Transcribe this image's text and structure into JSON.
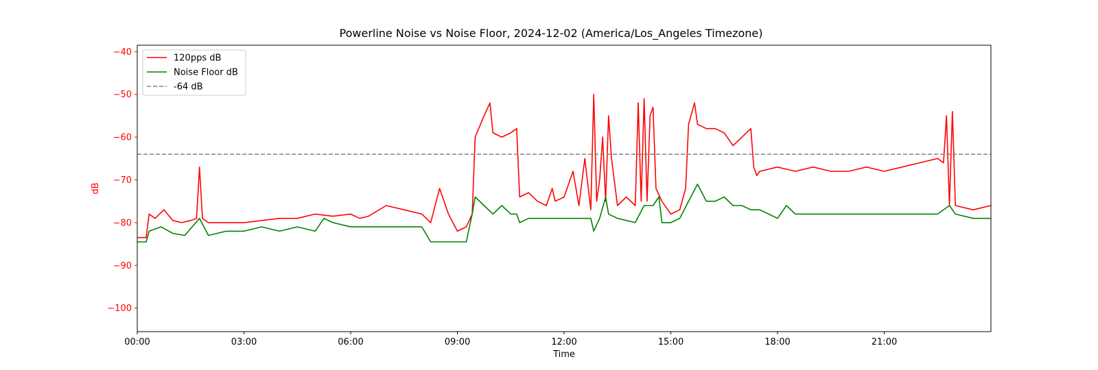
{
  "chart_data": {
    "type": "line",
    "title": "Powerline Noise vs Noise Floor, 2024-12-02 (America/Los_Angeles Timezone)",
    "xlabel": "Time",
    "ylabel": "dB",
    "xlim": [
      "00:00",
      "24:00"
    ],
    "ylim": [
      -105.5,
      -38.5
    ],
    "x_ticks": [
      "00:00",
      "03:00",
      "06:00",
      "09:00",
      "12:00",
      "15:00",
      "18:00",
      "21:00"
    ],
    "y_ticks": [
      -40,
      -50,
      -60,
      -70,
      -80,
      -90,
      -100
    ],
    "grid": false,
    "legend_position": "upper-left",
    "series": [
      {
        "name": "120pps dB",
        "color": "#ff0000",
        "style": "solid",
        "x": [
          "00:00",
          "00:15",
          "00:20",
          "00:30",
          "00:45",
          "01:00",
          "01:15",
          "01:30",
          "01:40",
          "01:45",
          "01:50",
          "02:00",
          "02:30",
          "03:00",
          "03:30",
          "04:00",
          "04:30",
          "05:00",
          "05:30",
          "06:00",
          "06:15",
          "06:30",
          "07:00",
          "07:30",
          "08:00",
          "08:15",
          "08:30",
          "08:45",
          "09:00",
          "09:15",
          "09:25",
          "09:30",
          "09:45",
          "09:55",
          "10:00",
          "10:15",
          "10:30",
          "10:40",
          "10:45",
          "11:00",
          "11:15",
          "11:30",
          "11:40",
          "11:45",
          "12:00",
          "12:15",
          "12:25",
          "12:35",
          "12:45",
          "12:50",
          "12:55",
          "13:00",
          "13:05",
          "13:10",
          "13:15",
          "13:20",
          "13:30",
          "13:45",
          "14:00",
          "14:05",
          "14:10",
          "14:15",
          "14:20",
          "14:25",
          "14:30",
          "14:35",
          "14:45",
          "15:00",
          "15:15",
          "15:25",
          "15:30",
          "15:40",
          "15:45",
          "16:00",
          "16:15",
          "16:30",
          "16:45",
          "17:00",
          "17:15",
          "17:20",
          "17:25",
          "17:30",
          "18:00",
          "18:30",
          "19:00",
          "19:30",
          "20:00",
          "20:30",
          "21:00",
          "21:30",
          "22:00",
          "22:30",
          "22:40",
          "22:45",
          "22:50",
          "22:55",
          "23:00",
          "23:30",
          "24:00"
        ],
        "y": [
          -83.5,
          -83.5,
          -78,
          -79,
          -77,
          -79.5,
          -80,
          -79.5,
          -79,
          -67,
          -79,
          -80,
          -80,
          -80,
          -79.5,
          -79,
          -79,
          -78,
          -78.5,
          -78,
          -79,
          -78.5,
          -76,
          -77,
          -78,
          -80,
          -72,
          -78,
          -82,
          -81,
          -78,
          -60,
          -55,
          -52,
          -59,
          -60,
          -59,
          -58,
          -74,
          -73,
          -75,
          -76,
          -72,
          -75,
          -74,
          -68,
          -76,
          -65,
          -77,
          -50,
          -75,
          -70,
          -60,
          -75,
          -55,
          -65,
          -76,
          -74,
          -76,
          -52,
          -75,
          -51,
          -75,
          -55,
          -53,
          -72,
          -75,
          -78,
          -77,
          -72,
          -57,
          -52,
          -57,
          -58,
          -58,
          -59,
          -62,
          -60,
          -58,
          -67,
          -69,
          -68,
          -67,
          -68,
          -67,
          -68,
          -68,
          -67,
          -68,
          -67,
          -66,
          -65,
          -66,
          -55,
          -76,
          -54,
          -76,
          -77,
          -76
        ]
      },
      {
        "name": "Noise Floor dB",
        "color": "#008000",
        "style": "solid",
        "x": [
          "00:00",
          "00:15",
          "00:20",
          "00:40",
          "01:00",
          "01:20",
          "01:45",
          "02:00",
          "02:30",
          "03:00",
          "03:30",
          "04:00",
          "04:30",
          "05:00",
          "05:15",
          "05:30",
          "06:00",
          "06:30",
          "07:00",
          "07:30",
          "08:00",
          "08:15",
          "08:30",
          "09:00",
          "09:15",
          "09:25",
          "09:30",
          "09:45",
          "10:00",
          "10:15",
          "10:30",
          "10:40",
          "10:45",
          "11:00",
          "11:30",
          "12:00",
          "12:30",
          "12:45",
          "12:50",
          "13:00",
          "13:10",
          "13:15",
          "13:30",
          "14:00",
          "14:15",
          "14:30",
          "14:40",
          "14:45",
          "15:00",
          "15:15",
          "15:30",
          "15:45",
          "16:00",
          "16:15",
          "16:30",
          "16:45",
          "17:00",
          "17:15",
          "17:30",
          "17:45",
          "18:00",
          "18:15",
          "18:30",
          "19:00",
          "19:30",
          "20:00",
          "20:30",
          "21:00",
          "21:30",
          "22:00",
          "22:30",
          "22:50",
          "23:00",
          "23:30",
          "24:00"
        ],
        "y": [
          -84.5,
          -84.5,
          -82,
          -81,
          -82.5,
          -83,
          -79,
          -83,
          -82,
          -82,
          -81,
          -82,
          -81,
          -82,
          -79,
          -80,
          -81,
          -81,
          -81,
          -81,
          -81,
          -84.5,
          -84.5,
          -84.5,
          -84.5,
          -78,
          -74,
          -76,
          -78,
          -76,
          -78,
          -78,
          -80,
          -79,
          -79,
          -79,
          -79,
          -79,
          -82,
          -79,
          -74,
          -78,
          -79,
          -80,
          -76,
          -76,
          -74,
          -80,
          -80,
          -79,
          -75,
          -71,
          -75,
          -75,
          -74,
          -76,
          -76,
          -77,
          -77,
          -78,
          -79,
          -76,
          -78,
          -78,
          -78,
          -78,
          -78,
          -78,
          -78,
          -78,
          -78,
          -76,
          -78,
          -79,
          -79
        ]
      },
      {
        "name": "-64 dB",
        "color": "#808080",
        "style": "dashed",
        "x": [
          "00:00",
          "24:00"
        ],
        "y": [
          -64,
          -64
        ]
      }
    ]
  }
}
